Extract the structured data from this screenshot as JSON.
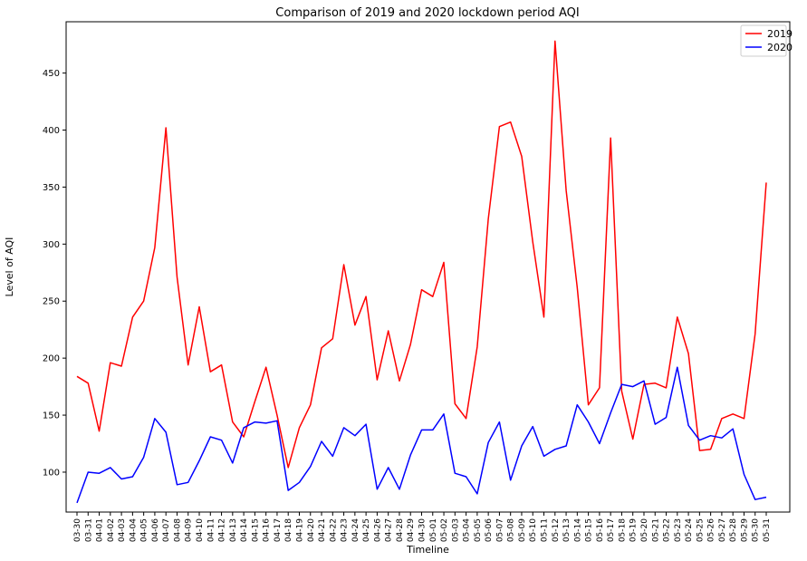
{
  "chart_data": {
    "type": "line",
    "title": "Comparison of 2019 and 2020 lockdown period AQI",
    "xlabel": "Timeline",
    "ylabel": "Level of AQI",
    "ylim": [
      65,
      495
    ],
    "yticks": [
      100,
      150,
      200,
      250,
      300,
      350,
      400,
      450
    ],
    "grid": false,
    "legend_position": "top-right",
    "categories": [
      "03-30",
      "03-31",
      "04-01",
      "04-02",
      "04-03",
      "04-04",
      "04-05",
      "04-06",
      "04-07",
      "04-08",
      "04-09",
      "04-10",
      "04-11",
      "04-12",
      "04-13",
      "04-14",
      "04-15",
      "04-16",
      "04-17",
      "04-18",
      "04-19",
      "04-20",
      "04-21",
      "04-22",
      "04-23",
      "04-24",
      "04-25",
      "04-26",
      "04-27",
      "04-28",
      "04-29",
      "04-30",
      "05-01",
      "05-02",
      "05-03",
      "05-04",
      "05-05",
      "05-06",
      "05-07",
      "05-08",
      "05-09",
      "05-10",
      "05-11",
      "05-12",
      "05-13",
      "05-14",
      "05-15",
      "05-16",
      "05-17",
      "05-18",
      "05-19",
      "05-20",
      "05-21",
      "05-22",
      "05-23",
      "05-24",
      "05-25",
      "05-26",
      "05-27",
      "05-28",
      "05-29",
      "05-30",
      "05-31"
    ],
    "series": [
      {
        "name": "2019",
        "color": "#ff0000",
        "values": [
          184,
          178,
          136,
          196,
          193,
          236,
          250,
          297,
          402,
          271,
          194,
          245,
          188,
          194,
          144,
          131,
          162,
          192,
          150,
          104,
          139,
          159,
          209,
          217,
          282,
          229,
          254,
          181,
          224,
          180,
          212,
          260,
          254,
          284,
          160,
          147,
          210,
          322,
          403,
          407,
          377,
          302,
          236,
          478,
          347,
          262,
          159,
          174,
          393,
          171,
          129,
          177,
          178,
          174,
          236,
          204,
          119,
          120,
          147,
          151,
          147,
          221,
          354
        ]
      },
      {
        "name": "2020",
        "color": "#0000ff",
        "values": [
          73,
          100,
          99,
          104,
          94,
          96,
          113,
          147,
          135,
          89,
          91,
          110,
          131,
          128,
          108,
          139,
          144,
          143,
          145,
          84,
          91,
          105,
          127,
          114,
          139,
          132,
          142,
          85,
          104,
          85,
          115,
          137,
          137,
          151,
          99,
          96,
          81,
          126,
          144,
          93,
          123,
          140,
          114,
          120,
          123,
          159,
          144,
          125,
          152,
          177,
          175,
          180,
          142,
          148,
          192,
          141,
          128,
          132,
          130,
          138,
          98,
          76,
          78
        ]
      }
    ]
  }
}
